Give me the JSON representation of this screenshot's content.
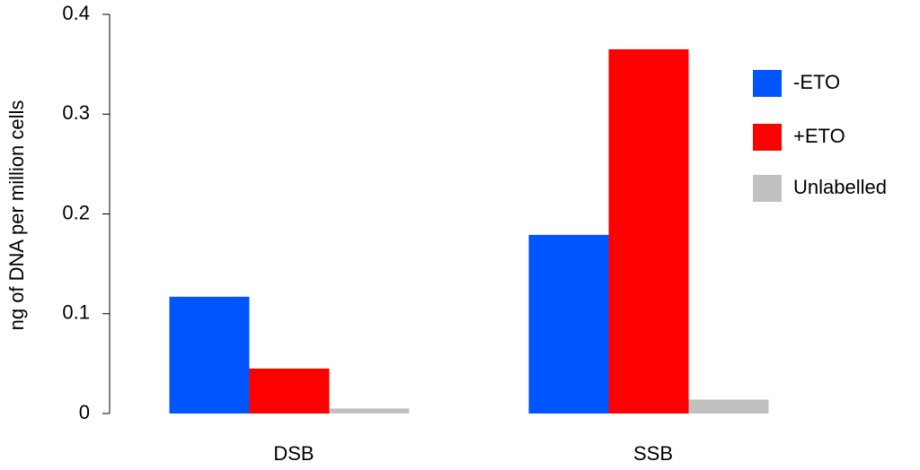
{
  "chart_data": {
    "type": "bar",
    "y_label": "ng of DNA per million cells",
    "categories": [
      "DSB",
      "SSB"
    ],
    "series": [
      {
        "name": "-ETO",
        "color": "#0055ff",
        "values": [
          0.117,
          0.179
        ]
      },
      {
        "name": "+ETO",
        "color": "#ff0000",
        "values": [
          0.045,
          0.365
        ]
      },
      {
        "name": "Unlabelled",
        "color": "#c0c0c0",
        "values": [
          0.005,
          0.014
        ]
      }
    ],
    "ylim": [
      0,
      0.4
    ],
    "yticks": [
      0,
      0.1,
      0.2,
      0.3,
      0.4
    ],
    "legend": "right"
  }
}
